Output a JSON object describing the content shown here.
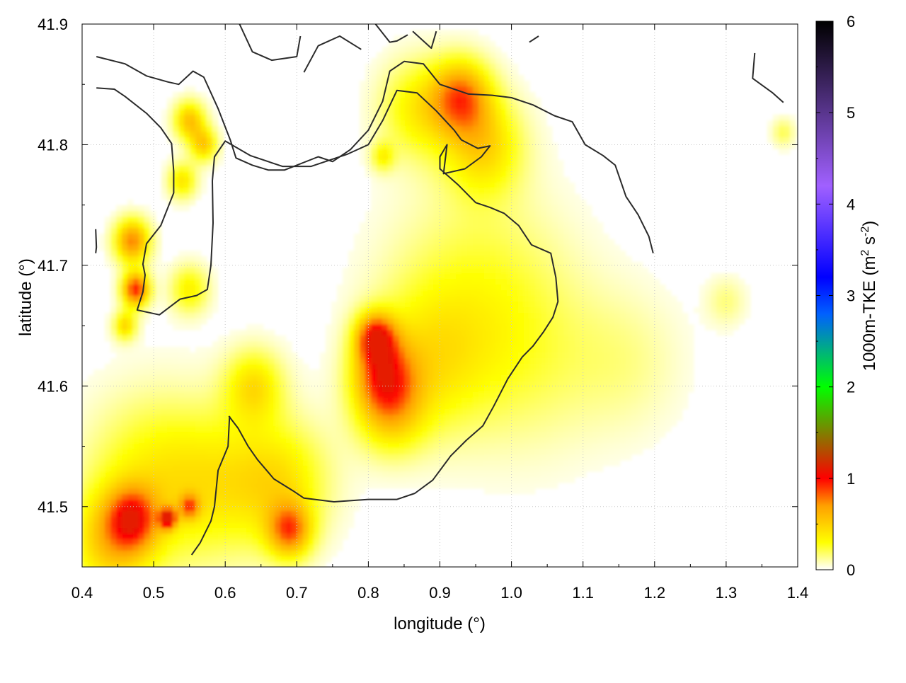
{
  "chart_data": {
    "type": "heatmap",
    "title": "",
    "xlabel": "longitude (°)",
    "ylabel": "latitude (°)",
    "xlim": [
      0.4,
      1.4
    ],
    "ylim": [
      41.45,
      41.9
    ],
    "x_ticks": [
      "0.4",
      "0.5",
      "0.6",
      "0.7",
      "0.8",
      "0.9",
      "1.0",
      "1.1",
      "1.2",
      "1.3",
      "1.4"
    ],
    "x_tick_values": [
      0.4,
      0.5,
      0.6,
      0.7,
      0.8,
      0.9,
      1.0,
      1.1,
      1.2,
      1.3,
      1.4
    ],
    "y_ticks": [
      "41.5",
      "41.6",
      "41.7",
      "41.8",
      "41.9"
    ],
    "y_tick_values": [
      41.5,
      41.6,
      41.7,
      41.8,
      41.9
    ],
    "grid": true,
    "colorbar": {
      "label_base": "1000m-TKE (m",
      "label_sup1": "2",
      "label_mid": " s",
      "label_sup2": "-2",
      "label_end": ")",
      "range": [
        0,
        6
      ],
      "ticks": [
        "0",
        "1",
        "2",
        "3",
        "4",
        "5",
        "6"
      ],
      "tick_values": [
        0,
        1,
        2,
        3,
        4,
        5,
        6
      ],
      "colors": [
        "#ffffff",
        "#ffff00",
        "#ffa000",
        "#ff0000",
        "#00ff00",
        "#0060ff",
        "#0000ff",
        "#a060ff",
        "#000000"
      ],
      "stops": [
        0,
        0.3,
        0.7,
        1.0,
        2.0,
        2.8,
        3.2,
        4.2,
        6.0
      ]
    },
    "hotspots": [
      {
        "lon": 0.47,
        "lat": 41.72,
        "value": 0.75,
        "r": 0.018
      },
      {
        "lon": 0.475,
        "lat": 41.68,
        "value": 0.95,
        "r": 0.014
      },
      {
        "lon": 0.55,
        "lat": 41.82,
        "value": 0.55,
        "r": 0.016
      },
      {
        "lon": 0.57,
        "lat": 41.8,
        "value": 0.5,
        "r": 0.014
      },
      {
        "lon": 0.54,
        "lat": 41.77,
        "value": 0.4,
        "r": 0.015
      },
      {
        "lon": 0.55,
        "lat": 41.68,
        "value": 0.35,
        "r": 0.02
      },
      {
        "lon": 0.46,
        "lat": 41.65,
        "value": 0.45,
        "r": 0.012
      },
      {
        "lon": 0.93,
        "lat": 41.84,
        "value": 0.7,
        "r": 0.03
      },
      {
        "lon": 0.96,
        "lat": 41.8,
        "value": 0.45,
        "r": 0.04
      },
      {
        "lon": 0.87,
        "lat": 41.83,
        "value": 0.35,
        "r": 0.04
      },
      {
        "lon": 0.81,
        "lat": 41.64,
        "value": 0.85,
        "r": 0.02
      },
      {
        "lon": 0.82,
        "lat": 41.61,
        "value": 0.65,
        "r": 0.03
      },
      {
        "lon": 0.83,
        "lat": 41.58,
        "value": 0.45,
        "r": 0.035
      },
      {
        "lon": 0.88,
        "lat": 41.62,
        "value": 0.3,
        "r": 0.06
      },
      {
        "lon": 0.95,
        "lat": 41.68,
        "value": 0.22,
        "r": 0.09
      },
      {
        "lon": 1.02,
        "lat": 41.62,
        "value": 0.15,
        "r": 0.08
      },
      {
        "lon": 0.68,
        "lat": 41.52,
        "value": 0.35,
        "r": 0.05
      },
      {
        "lon": 0.69,
        "lat": 41.48,
        "value": 0.7,
        "r": 0.022
      },
      {
        "lon": 0.64,
        "lat": 41.6,
        "value": 0.4,
        "r": 0.03
      },
      {
        "lon": 0.47,
        "lat": 41.49,
        "value": 0.65,
        "r": 0.025
      },
      {
        "lon": 0.44,
        "lat": 41.47,
        "value": 0.45,
        "r": 0.04
      },
      {
        "lon": 0.52,
        "lat": 41.49,
        "value": 1.0,
        "r": 0.008
      },
      {
        "lon": 0.55,
        "lat": 41.5,
        "value": 0.55,
        "r": 0.01
      },
      {
        "lon": 0.5,
        "lat": 41.52,
        "value": 0.35,
        "r": 0.07
      },
      {
        "lon": 0.6,
        "lat": 41.52,
        "value": 0.25,
        "r": 0.06
      },
      {
        "lon": 1.16,
        "lat": 41.62,
        "value": 0.12,
        "r": 0.06
      },
      {
        "lon": 0.82,
        "lat": 41.79,
        "value": 0.3,
        "r": 0.012
      },
      {
        "lon": 1.38,
        "lat": 41.81,
        "value": 0.2,
        "r": 0.012
      },
      {
        "lon": 1.3,
        "lat": 41.67,
        "value": 0.15,
        "r": 0.02
      }
    ],
    "contours": [
      [
        [
          0.42,
          41.873
        ],
        [
          0.46,
          41.867
        ],
        [
          0.49,
          41.857
        ],
        [
          0.52,
          41.852
        ],
        [
          0.535,
          41.85
        ],
        [
          0.555,
          41.861
        ],
        [
          0.57,
          41.856
        ],
        [
          0.59,
          41.83
        ],
        [
          0.607,
          41.804
        ],
        [
          0.615,
          41.789
        ],
        [
          0.638,
          41.783
        ],
        [
          0.66,
          41.779
        ],
        [
          0.683,
          41.779
        ],
        [
          0.73,
          41.79
        ],
        [
          0.75,
          41.786
        ],
        [
          0.775,
          41.796
        ],
        [
          0.8,
          41.812
        ],
        [
          0.82,
          41.836
        ],
        [
          0.83,
          41.861
        ],
        [
          0.85,
          41.869
        ],
        [
          0.877,
          41.867
        ],
        [
          0.9,
          41.85
        ],
        [
          0.92,
          41.846
        ],
        [
          0.94,
          41.842
        ],
        [
          0.973,
          41.841
        ],
        [
          1.0,
          41.839
        ],
        [
          1.03,
          41.833
        ],
        [
          1.06,
          41.824
        ],
        [
          1.085,
          41.819
        ],
        [
          1.103,
          41.8
        ],
        [
          1.128,
          41.791
        ],
        [
          1.145,
          41.783
        ],
        [
          1.16,
          41.757
        ],
        [
          1.177,
          41.742
        ],
        [
          1.192,
          41.724
        ],
        [
          1.198,
          41.71
        ]
      ],
      [
        [
          0.42,
          41.847
        ],
        [
          0.445,
          41.846
        ],
        [
          0.46,
          41.84
        ],
        [
          0.49,
          41.826
        ],
        [
          0.51,
          41.814
        ],
        [
          0.525,
          41.801
        ],
        [
          0.528,
          41.778
        ],
        [
          0.528,
          41.76
        ],
        [
          0.51,
          41.733
        ],
        [
          0.49,
          41.718
        ],
        [
          0.485,
          41.701
        ],
        [
          0.488,
          41.692
        ],
        [
          0.485,
          41.678
        ],
        [
          0.477,
          41.663
        ],
        [
          0.508,
          41.659
        ],
        [
          0.537,
          41.672
        ],
        [
          0.56,
          41.675
        ],
        [
          0.575,
          41.68
        ],
        [
          0.58,
          41.7
        ],
        [
          0.583,
          41.735
        ],
        [
          0.582,
          41.77
        ],
        [
          0.585,
          41.79
        ],
        [
          0.6,
          41.803
        ],
        [
          0.635,
          41.791
        ],
        [
          0.68,
          41.782
        ],
        [
          0.72,
          41.782
        ],
        [
          0.77,
          41.792
        ],
        [
          0.8,
          41.8
        ],
        [
          0.82,
          41.82
        ],
        [
          0.84,
          41.845
        ],
        [
          0.868,
          41.843
        ],
        [
          0.895,
          41.828
        ],
        [
          0.92,
          41.812
        ],
        [
          0.93,
          41.804
        ],
        [
          0.953,
          41.797
        ],
        [
          0.97,
          41.799
        ],
        [
          0.958,
          41.79
        ],
        [
          0.935,
          41.78
        ],
        [
          0.905,
          41.776
        ],
        [
          0.91,
          41.8
        ],
        [
          0.9,
          41.79
        ],
        [
          0.9,
          41.78
        ],
        [
          0.925,
          41.767
        ],
        [
          0.95,
          41.752
        ],
        [
          0.97,
          41.748
        ],
        [
          0.99,
          41.743
        ],
        [
          1.01,
          41.733
        ],
        [
          1.028,
          41.717
        ],
        [
          1.055,
          41.71
        ],
        [
          1.062,
          41.69
        ],
        [
          1.065,
          41.67
        ],
        [
          1.058,
          41.657
        ],
        [
          1.045,
          41.645
        ],
        [
          1.03,
          41.633
        ],
        [
          1.015,
          41.624
        ],
        [
          0.995,
          41.606
        ],
        [
          0.975,
          41.583
        ],
        [
          0.96,
          41.567
        ],
        [
          0.937,
          41.555
        ],
        [
          0.915,
          41.542
        ],
        [
          0.89,
          41.522
        ],
        [
          0.865,
          41.511
        ],
        [
          0.84,
          41.506
        ],
        [
          0.8,
          41.506
        ],
        [
          0.752,
          41.504
        ],
        [
          0.71,
          41.507
        ],
        [
          0.695,
          41.513
        ],
        [
          0.668,
          41.523
        ],
        [
          0.645,
          41.539
        ],
        [
          0.632,
          41.55
        ],
        [
          0.618,
          41.565
        ],
        [
          0.605,
          41.575
        ]
      ],
      [
        [
          0.606,
          41.575
        ],
        [
          0.604,
          41.55
        ],
        [
          0.59,
          41.53
        ],
        [
          0.585,
          41.5
        ],
        [
          0.58,
          41.488
        ],
        [
          0.565,
          41.47
        ],
        [
          0.553,
          41.46
        ]
      ],
      [
        [
          0.62,
          41.9
        ],
        [
          0.638,
          41.877
        ],
        [
          0.665,
          41.87
        ],
        [
          0.7,
          41.873
        ],
        [
          0.705,
          41.89
        ]
      ],
      [
        [
          0.71,
          41.86
        ],
        [
          0.73,
          41.882
        ],
        [
          0.76,
          41.89
        ],
        [
          0.79,
          41.879
        ]
      ],
      [
        [
          0.81,
          41.9
        ],
        [
          0.83,
          41.885
        ],
        [
          0.84,
          41.886
        ],
        [
          0.855,
          41.891
        ]
      ],
      [
        [
          0.862,
          41.894
        ],
        [
          0.888,
          41.88
        ],
        [
          0.895,
          41.894
        ]
      ],
      [
        [
          1.025,
          41.885
        ],
        [
          1.038,
          41.89
        ]
      ],
      [
        [
          1.34,
          41.876
        ],
        [
          1.337,
          41.855
        ],
        [
          1.365,
          41.843
        ],
        [
          1.38,
          41.835
        ]
      ],
      [
        [
          0.419,
          41.73
        ],
        [
          0.42,
          41.715
        ],
        [
          0.419,
          41.71
        ]
      ]
    ]
  }
}
